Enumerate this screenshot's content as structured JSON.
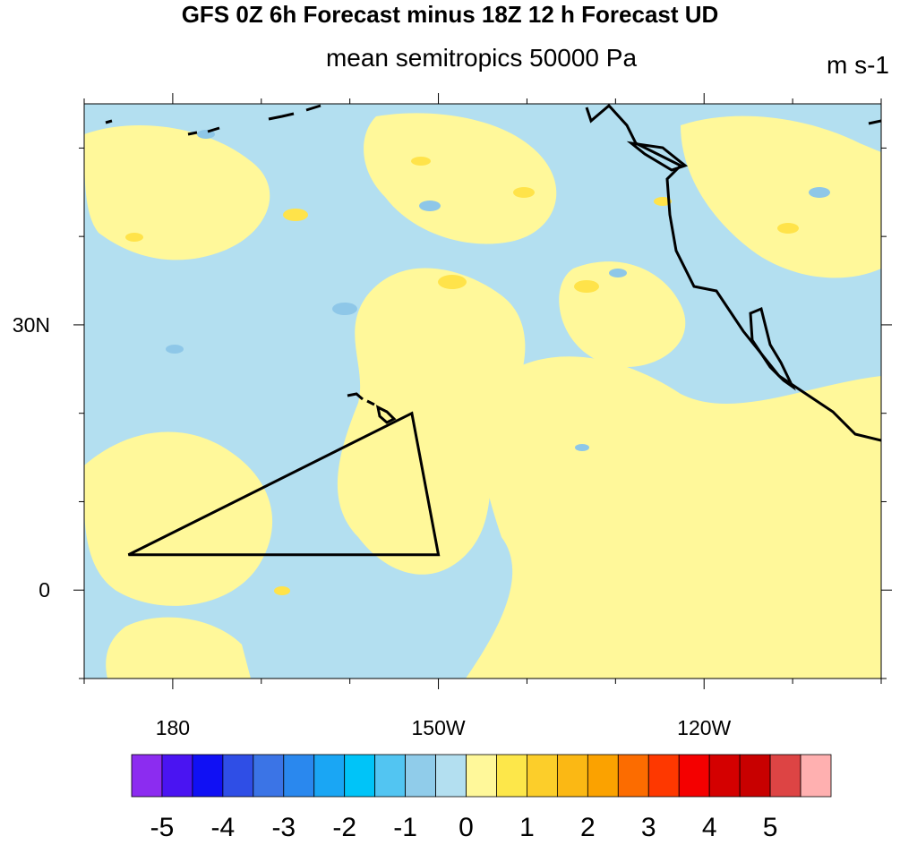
{
  "title": "GFS 0Z 6h Forecast minus 18Z 12 h Forecast UD",
  "subtitle": "mean semitropics 50000 Pa",
  "units": "m s-1",
  "map": {
    "region": "Eastern North Pacific",
    "lon_range": [
      170,
      260
    ],
    "lat_range": [
      -10,
      55
    ],
    "field_colors": {
      "negative": "#b3dff0",
      "positive": "#fff89a",
      "pos_strong": "#ffe34a",
      "neg_strong": "#8ec7e8"
    },
    "x_ticks": [
      {
        "label": "180"
      },
      {
        "label": "150W"
      },
      {
        "label": "120W"
      }
    ],
    "y_ticks": [
      {
        "label": "30N"
      },
      {
        "label": "0"
      }
    ],
    "triangle_region": {
      "vertices_lonlat": [
        [
          175,
          4
        ],
        [
          207,
          20
        ],
        [
          210,
          4
        ]
      ]
    }
  },
  "colorbar": {
    "labels": [
      "-5",
      "-4",
      "-3",
      "-2",
      "-1",
      "0",
      "1",
      "2",
      "3",
      "4",
      "5"
    ],
    "colors": [
      "#8c2cf0",
      "#4a14f2",
      "#1010f4",
      "#2f4ee6",
      "#3b74e6",
      "#2a88ee",
      "#1aa6f4",
      "#00c4f8",
      "#52c5f2",
      "#90ccea",
      "#b3dff0",
      "#fff89a",
      "#fde74a",
      "#fcce2a",
      "#fbb814",
      "#fba200",
      "#fc6c00",
      "#fe3800",
      "#f40000",
      "#d40000",
      "#c80000",
      "#dd4444",
      "#ffb0b0"
    ]
  }
}
